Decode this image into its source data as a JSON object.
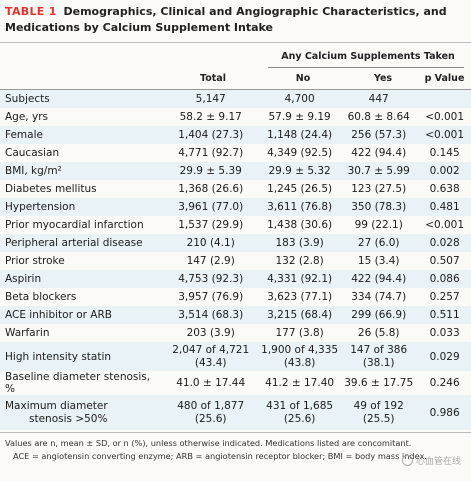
{
  "title": {
    "label": "TABLE 1",
    "text": "Demographics, Clinical and Angiographic Characteristics, and Medications by Calcium Supplement Intake"
  },
  "header": {
    "group": "Any Calcium Supplements Taken",
    "total": "Total",
    "no": "No",
    "yes": "Yes",
    "pvalue": "p Value"
  },
  "rows": [
    {
      "label": "Subjects",
      "total": "5,147",
      "no": "4,700",
      "yes": "447",
      "p": ""
    },
    {
      "label": "Age, yrs",
      "total": "58.2 ± 9.17",
      "no": "57.9 ± 9.19",
      "yes": "60.8 ± 8.64",
      "p": "<0.001"
    },
    {
      "label": "Female",
      "total": "1,404 (27.3)",
      "no": "1,148 (24.4)",
      "yes": "256 (57.3)",
      "p": "<0.001"
    },
    {
      "label": "Caucasian",
      "total": "4,771 (92.7)",
      "no": "4,349 (92.5)",
      "yes": "422 (94.4)",
      "p": "0.145"
    },
    {
      "label": "BMI, kg/m²",
      "total": "29.9 ± 5.39",
      "no": "29.9 ± 5.32",
      "yes": "30.7 ± 5.99",
      "p": "0.002"
    },
    {
      "label": "Diabetes mellitus",
      "total": "1,368 (26.6)",
      "no": "1,245 (26.5)",
      "yes": "123 (27.5)",
      "p": "0.638"
    },
    {
      "label": "Hypertension",
      "total": "3,961 (77.0)",
      "no": "3,611 (76.8)",
      "yes": "350 (78.3)",
      "p": "0.481"
    },
    {
      "label": "Prior myocardial infarction",
      "total": "1,537 (29.9)",
      "no": "1,438 (30.6)",
      "yes": "99 (22.1)",
      "p": "<0.001"
    },
    {
      "label": "Peripheral arterial disease",
      "total": "210 (4.1)",
      "no": "183 (3.9)",
      "yes": "27 (6.0)",
      "p": "0.028"
    },
    {
      "label": "Prior stroke",
      "total": "147 (2.9)",
      "no": "132 (2.8)",
      "yes": "15 (3.4)",
      "p": "0.507"
    },
    {
      "label": "Aspirin",
      "total": "4,753 (92.3)",
      "no": "4,331 (92.1)",
      "yes": "422 (94.4)",
      "p": "0.086"
    },
    {
      "label": "Beta blockers",
      "total": "3,957 (76.9)",
      "no": "3,623 (77.1)",
      "yes": "334 (74.7)",
      "p": "0.257"
    },
    {
      "label": "ACE inhibitor or ARB",
      "total": "3,514 (68.3)",
      "no": "3,215 (68.4)",
      "yes": "299 (66.9)",
      "p": "0.511"
    },
    {
      "label": "Warfarin",
      "total": "203 (3.9)",
      "no": "177 (3.8)",
      "yes": "26 (5.8)",
      "p": "0.033"
    },
    {
      "label": "High intensity statin",
      "total1": "2,047 of 4,721",
      "total2": "(43.4)",
      "no1": "1,900 of 4,335",
      "no2": "(43.8)",
      "yes1": "147 of 386",
      "yes2": "(38.1)",
      "p": "0.029"
    },
    {
      "label": "Baseline diameter stenosis, %",
      "total": "41.0 ± 17.44",
      "no": "41.2 ± 17.40",
      "yes": "39.6 ± 17.75",
      "p": "0.246"
    },
    {
      "label1": "Maximum diameter",
      "label2": "stenosis >50%",
      "total1": "480 of 1,877",
      "total2": "(25.6)",
      "no1": "431 of 1,685",
      "no2": "(25.6)",
      "yes1": "49 of 192",
      "yes2": "(25.5)",
      "p": "0.986"
    }
  ],
  "footnote": {
    "line1": "Values are n, mean ± SD, or n (%), unless otherwise indicated. Medications listed are concomitant.",
    "line2": "ACE = angiotensin converting enzyme; ARB = angiotensin receptor blocker; BMI = body mass index."
  },
  "watermark": "心血管在线"
}
